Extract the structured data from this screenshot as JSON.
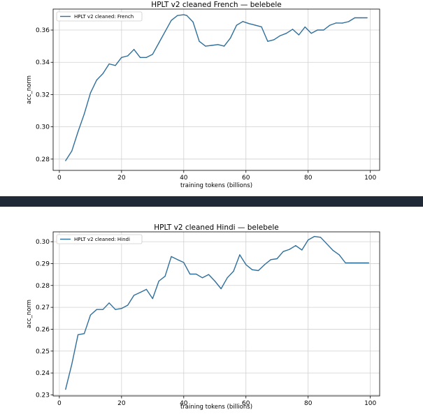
{
  "chart_data": [
    {
      "type": "line",
      "title": "HPLT v2 cleaned French — belebele",
      "xlabel": "training tokens (billions)",
      "ylabel": "acc_norm",
      "xlim": [
        -2,
        103
      ],
      "ylim": [
        0.273,
        0.373
      ],
      "xticks": [
        0,
        20,
        40,
        60,
        80,
        100
      ],
      "yticks": [
        0.28,
        0.3,
        0.32,
        0.34,
        0.36
      ],
      "ytick_labels": [
        "0.28",
        "0.30",
        "0.32",
        "0.34",
        "0.36"
      ],
      "xtick_labels": [
        "0",
        "20",
        "40",
        "60",
        "80",
        "100"
      ],
      "grid": true,
      "legend_position": "upper-left",
      "color": "#2e6f9b",
      "series": [
        {
          "name": "HPLT v2 cleaned: French",
          "x": [
            2,
            4,
            6,
            8,
            10,
            12,
            14,
            16,
            18,
            20,
            22,
            24,
            26,
            28,
            30,
            32,
            34,
            36,
            38,
            40,
            41,
            43,
            45,
            47,
            49,
            51,
            53,
            55,
            57,
            59,
            61,
            63,
            65,
            67,
            69,
            71,
            73,
            75,
            77,
            79,
            81,
            83,
            85,
            87,
            89,
            91,
            93,
            95,
            97,
            99
          ],
          "y": [
            0.279,
            0.285,
            0.297,
            0.308,
            0.321,
            0.329,
            0.333,
            0.339,
            0.338,
            0.343,
            0.344,
            0.348,
            0.343,
            0.343,
            0.345,
            0.352,
            0.359,
            0.366,
            0.369,
            0.3695,
            0.369,
            0.365,
            0.353,
            0.35,
            0.3505,
            0.351,
            0.35,
            0.355,
            0.363,
            0.3653,
            0.364,
            0.363,
            0.362,
            0.353,
            0.354,
            0.3565,
            0.358,
            0.3605,
            0.357,
            0.3619,
            0.358,
            0.36,
            0.36,
            0.363,
            0.3644,
            0.3643,
            0.3652,
            0.3676,
            0.3676,
            0.3676
          ]
        }
      ]
    },
    {
      "type": "line",
      "title": "HPLT v2 cleaned Hindi — belebele",
      "xlabel": "training tokens (billions)",
      "ylabel": "acc_norm",
      "xlim": [
        -2,
        103
      ],
      "ylim": [
        0.2295,
        0.3045
      ],
      "xticks": [
        0,
        20,
        40,
        60,
        80,
        100
      ],
      "yticks": [
        0.23,
        0.24,
        0.25,
        0.26,
        0.27,
        0.28,
        0.29,
        0.3
      ],
      "ytick_labels": [
        "0.23",
        "0.24",
        "0.25",
        "0.26",
        "0.27",
        "0.28",
        "0.29",
        "0.30"
      ],
      "xtick_labels": [
        "0",
        "20",
        "40",
        "60",
        "80",
        "100"
      ],
      "grid": true,
      "legend_position": "upper-left",
      "color": "#2e6f9b",
      "series": [
        {
          "name": "HPLT v2 cleaned: Hindi",
          "x": [
            2,
            4,
            6,
            8,
            10,
            12,
            14,
            16,
            18,
            20,
            22,
            24,
            26,
            28,
            30,
            32,
            34,
            36,
            38,
            40,
            42,
            44,
            46,
            48,
            50,
            52,
            54,
            56,
            58,
            60,
            62,
            64,
            66,
            68,
            70,
            72,
            74,
            76,
            78,
            80,
            82,
            84,
            86,
            88,
            90,
            92,
            94,
            96,
            98,
            99.5
          ],
          "y": [
            0.2325,
            0.244,
            0.2575,
            0.258,
            0.2665,
            0.269,
            0.269,
            0.272,
            0.269,
            0.2695,
            0.271,
            0.2755,
            0.2768,
            0.2782,
            0.274,
            0.282,
            0.2842,
            0.2932,
            0.2918,
            0.2905,
            0.2852,
            0.2852,
            0.2835,
            0.285,
            0.282,
            0.2785,
            0.2835,
            0.2865,
            0.294,
            0.2895,
            0.2872,
            0.2868,
            0.2895,
            0.2918,
            0.2922,
            0.2955,
            0.2965,
            0.2982,
            0.2962,
            0.3008,
            0.3024,
            0.302,
            0.299,
            0.296,
            0.294,
            0.2903,
            0.2903,
            0.2903,
            0.2903,
            0.2903
          ]
        }
      ]
    }
  ]
}
